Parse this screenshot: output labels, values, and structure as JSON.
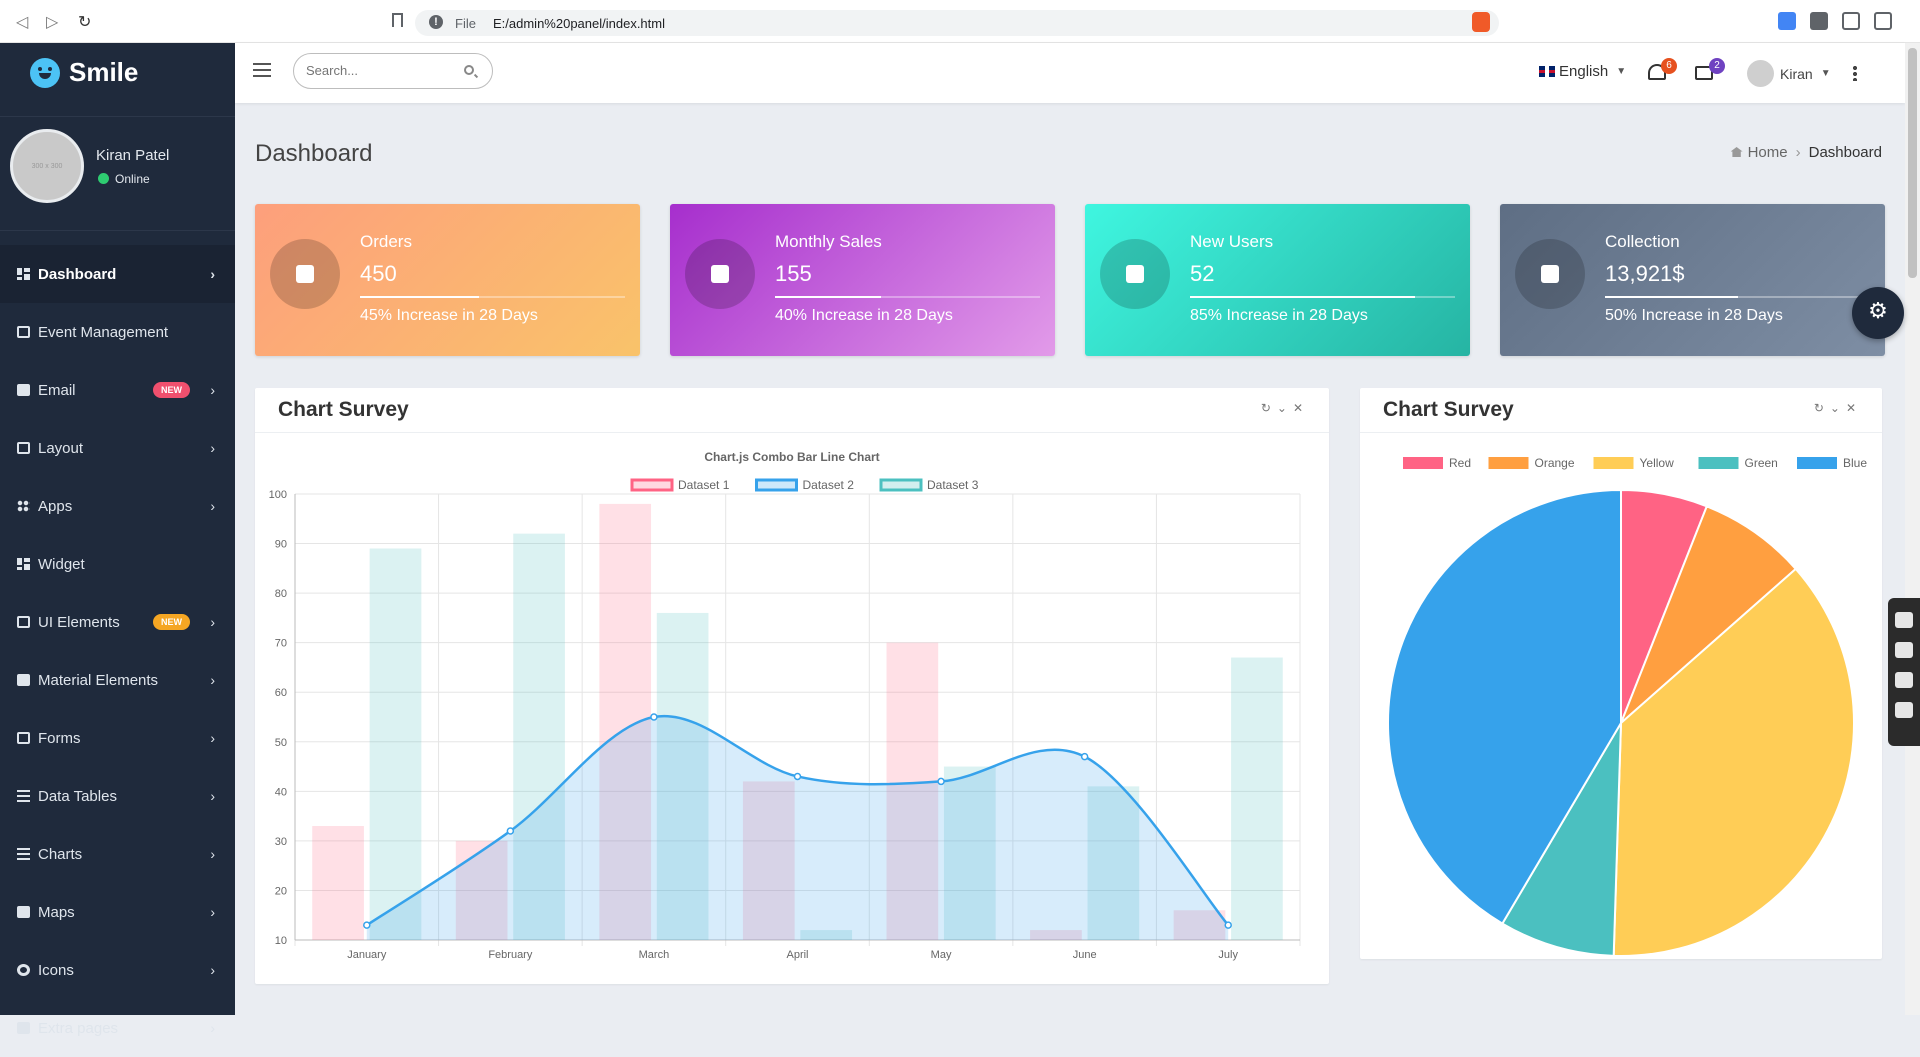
{
  "browser": {
    "file_label": "File",
    "url": "E:/admin%20panel/index.html"
  },
  "app": {
    "name": "Smile"
  },
  "profile": {
    "name": "Kiran Patel",
    "status": "Online",
    "avatar_placeholder": "300 x 300"
  },
  "sidebar": {
    "items": [
      {
        "label": "Dashboard",
        "icon": "dashboard-icon",
        "chevron": true,
        "active": true
      },
      {
        "label": "Event Management",
        "icon": "calendar-icon",
        "chevron": false
      },
      {
        "label": "Email",
        "icon": "envelope-icon",
        "chevron": true,
        "badge": "NEW",
        "badge_color": "#f0506e"
      },
      {
        "label": "Layout",
        "icon": "monitor-icon",
        "chevron": true
      },
      {
        "label": "Apps",
        "icon": "apps-icon",
        "chevron": true
      },
      {
        "label": "Widget",
        "icon": "widget-icon",
        "chevron": false
      },
      {
        "label": "UI Elements",
        "icon": "list-alt-icon",
        "chevron": true,
        "badge": "NEW",
        "badge_color": "#f5a623"
      },
      {
        "label": "Material Elements",
        "icon": "printer-icon",
        "chevron": true
      },
      {
        "label": "Forms",
        "icon": "form-icon",
        "chevron": true
      },
      {
        "label": "Data Tables",
        "icon": "list-icon",
        "chevron": true
      },
      {
        "label": "Charts",
        "icon": "line-chart-icon",
        "chevron": true
      },
      {
        "label": "Maps",
        "icon": "map-icon",
        "chevron": true
      },
      {
        "label": "Icons",
        "icon": "circle-icon",
        "chevron": true
      },
      {
        "label": "Extra pages",
        "icon": "file-icon",
        "chevron": true
      }
    ]
  },
  "topbar": {
    "search_placeholder": "Search...",
    "language": "English",
    "notifications_count": "6",
    "messages_count": "2",
    "user": "Kiran"
  },
  "page": {
    "title": "Dashboard",
    "breadcrumb": {
      "home": "Home",
      "current": "Dashboard"
    }
  },
  "stats": [
    {
      "title": "Orders",
      "value": "450",
      "footer": "45% Increase in 28 Days",
      "progress": 0.45,
      "icon": "cart-icon",
      "gradient": [
        "#fd9f7c",
        "#f9c36a"
      ]
    },
    {
      "title": "Monthly Sales",
      "value": "155",
      "footer": "40% Increase in 28 Days",
      "progress": 0.4,
      "icon": "gift-icon",
      "gradient": [
        "#a62ecd",
        "#e29be9"
      ]
    },
    {
      "title": "New Users",
      "value": "52",
      "footer": "85% Increase in 28 Days",
      "progress": 0.85,
      "icon": "users-icon",
      "gradient": [
        "#3ff6e0",
        "#26b4a3"
      ]
    },
    {
      "title": "Collection",
      "value": "13,921$",
      "footer": "50% Increase in 28 Days",
      "progress": 0.5,
      "icon": "dollar-icon",
      "gradient": [
        "#5e6e84",
        "#7e8ea4"
      ]
    }
  ],
  "panels": {
    "left_title": "Chart Survey",
    "right_title": "Chart Survey"
  },
  "chart_data": [
    {
      "type": "bar",
      "title": "Chart.js Combo Bar Line Chart",
      "categories": [
        "January",
        "February",
        "March",
        "April",
        "May",
        "June",
        "July"
      ],
      "ylim": [
        10,
        100
      ],
      "yticks": [
        10,
        20,
        30,
        40,
        50,
        60,
        70,
        80,
        90,
        100
      ],
      "grid": true,
      "legend": "top",
      "series": [
        {
          "name": "Dataset 1",
          "kind": "bar",
          "color": "#ff6384",
          "values": [
            33,
            30,
            98,
            42,
            70,
            12,
            16
          ]
        },
        {
          "name": "Dataset 2",
          "kind": "line",
          "color": "#36a2eb",
          "values": [
            13,
            32,
            55,
            43,
            42,
            47,
            13
          ]
        },
        {
          "name": "Dataset 3",
          "kind": "bar",
          "color": "#4bc0c0",
          "values": [
            89,
            92,
            76,
            12,
            45,
            41,
            67
          ]
        }
      ]
    },
    {
      "type": "pie",
      "legend": "top",
      "categories": [
        "Red",
        "Orange",
        "Yellow",
        "Green",
        "Blue"
      ],
      "colors": [
        "#ff6384",
        "#ff9f40",
        "#ffcd56",
        "#4bc0c0",
        "#36a2eb"
      ],
      "values": [
        6,
        7.5,
        37,
        8,
        41.5
      ]
    }
  ]
}
